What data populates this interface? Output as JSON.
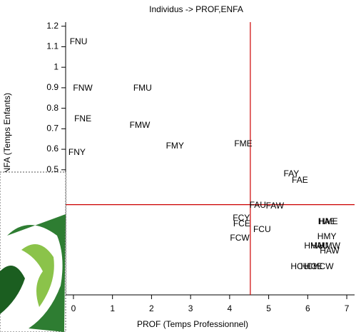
{
  "chart_data": {
    "type": "scatter",
    "title": "Individus -> PROF,ENFA",
    "x_label": "PROF (Temps Professionnel)",
    "y_label": "ENFA (Temps Enfants)",
    "labels": [
      "FNU",
      "FNW",
      "FMU",
      "FNE",
      "FMW",
      "FMY",
      "FME",
      "FNY",
      "FAY",
      "FAE",
      "FAU",
      "FAW",
      "FCY",
      "FCE",
      "FCU",
      "FCW",
      "HAE",
      "HME",
      "HMY",
      "HMU",
      "HAU",
      "HMW",
      "HAW",
      "HCU",
      "HCY",
      "HCE",
      "HCW"
    ],
    "x": [
      0.13,
      0.24,
      1.77,
      0.24,
      1.7,
      2.6,
      4.35,
      0.09,
      5.58,
      5.8,
      4.72,
      5.16,
      4.3,
      4.31,
      4.83,
      4.26,
      6.49,
      6.53,
      6.49,
      6.16,
      6.3,
      6.56,
      6.56,
      5.8,
      6.05,
      6.15,
      6.4
    ],
    "values": [
      1.123,
      0.897,
      0.897,
      0.747,
      0.716,
      0.615,
      0.625,
      0.583,
      0.479,
      0.448,
      0.326,
      0.322,
      0.263,
      0.235,
      0.207,
      0.165,
      0.245,
      0.245,
      0.172,
      0.127,
      0.127,
      0.127,
      0.103,
      0.026,
      0.026,
      0.026,
      0.026
    ],
    "color": "#000000",
    "xlim": [
      -0.2,
      7.2
    ],
    "ylim": [
      -0.11,
      1.22
    ],
    "xticks": [
      0,
      1,
      2,
      3,
      4,
      5,
      6,
      7
    ],
    "yticks": [
      0.5,
      0.6,
      0.7,
      0.8,
      0.9,
      1,
      1.1,
      1.2
    ],
    "reference_lines": {
      "x": 4.53,
      "y": 0.33,
      "color": "#cc0000"
    }
  }
}
